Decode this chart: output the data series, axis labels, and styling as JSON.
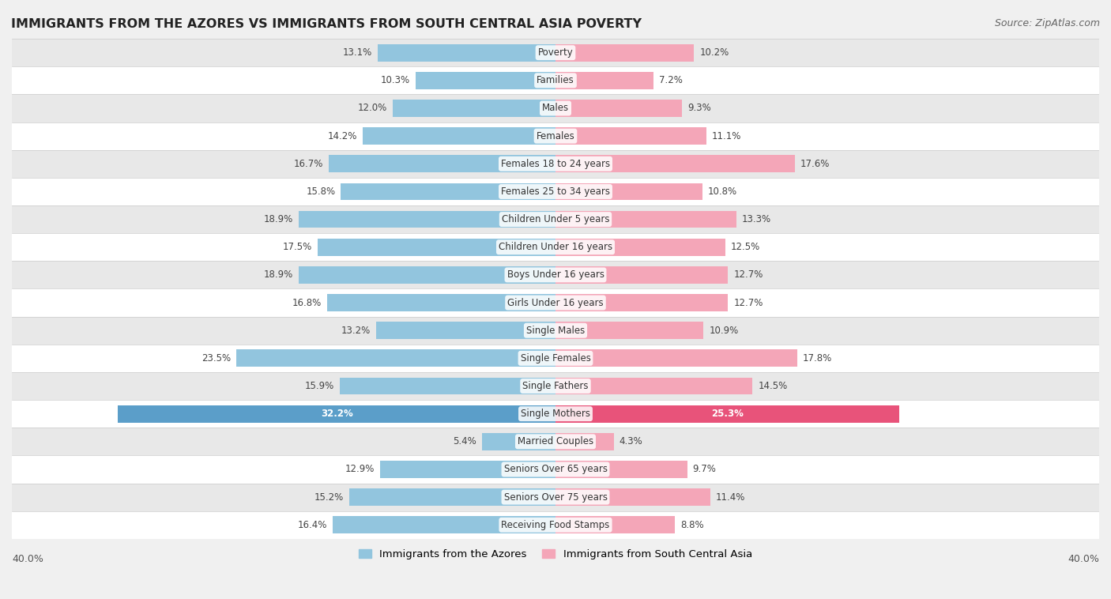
{
  "title": "IMMIGRANTS FROM THE AZORES VS IMMIGRANTS FROM SOUTH CENTRAL ASIA POVERTY",
  "source": "Source: ZipAtlas.com",
  "categories": [
    "Poverty",
    "Families",
    "Males",
    "Females",
    "Females 18 to 24 years",
    "Females 25 to 34 years",
    "Children Under 5 years",
    "Children Under 16 years",
    "Boys Under 16 years",
    "Girls Under 16 years",
    "Single Males",
    "Single Females",
    "Single Fathers",
    "Single Mothers",
    "Married Couples",
    "Seniors Over 65 years",
    "Seniors Over 75 years",
    "Receiving Food Stamps"
  ],
  "azores_values": [
    13.1,
    10.3,
    12.0,
    14.2,
    16.7,
    15.8,
    18.9,
    17.5,
    18.9,
    16.8,
    13.2,
    23.5,
    15.9,
    32.2,
    5.4,
    12.9,
    15.2,
    16.4
  ],
  "asia_values": [
    10.2,
    7.2,
    9.3,
    11.1,
    17.6,
    10.8,
    13.3,
    12.5,
    12.7,
    12.7,
    10.9,
    17.8,
    14.5,
    25.3,
    4.3,
    9.7,
    11.4,
    8.8
  ],
  "azores_color": "#92C5DE",
  "asia_color": "#F4A6B8",
  "azores_highlight_color": "#5B9EC9",
  "asia_highlight_color": "#E8537A",
  "background_color": "#f0f0f0",
  "row_color_odd": "#ffffff",
  "row_color_even": "#e8e8e8",
  "xlim": 40.0,
  "bar_height": 0.62,
  "legend_azores": "Immigrants from the Azores",
  "legend_asia": "Immigrants from South Central Asia",
  "single_mothers_idx": 13
}
